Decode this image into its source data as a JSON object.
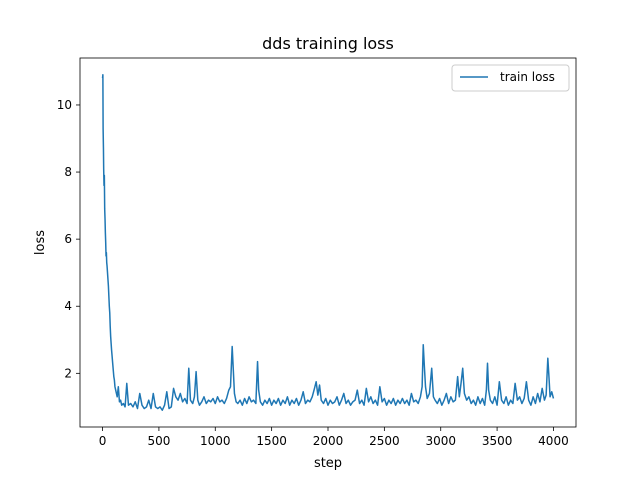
{
  "chart_data": {
    "type": "line",
    "title": "dds training loss",
    "xlabel": "step",
    "ylabel": "loss",
    "xlim": [
      -200,
      4200
    ],
    "ylim": [
      0.4,
      11.4
    ],
    "xticks": [
      0,
      500,
      1000,
      1500,
      2000,
      2500,
      3000,
      3500,
      4000
    ],
    "yticks": [
      2,
      4,
      6,
      8,
      10
    ],
    "grid": false,
    "legend_position": "top-right",
    "series": [
      {
        "name": "train loss",
        "color": "#1f77b4",
        "points": [
          [
            0,
            10.8
          ],
          [
            3,
            10.9
          ],
          [
            5,
            9.3
          ],
          [
            8,
            8.7
          ],
          [
            10,
            8.1
          ],
          [
            13,
            7.6
          ],
          [
            16,
            7.9
          ],
          [
            19,
            6.9
          ],
          [
            22,
            6.6
          ],
          [
            25,
            6.2
          ],
          [
            28,
            5.9
          ],
          [
            31,
            5.5
          ],
          [
            34,
            5.6
          ],
          [
            37,
            5.3
          ],
          [
            40,
            5.2
          ],
          [
            44,
            5.0
          ],
          [
            48,
            4.8
          ],
          [
            52,
            4.6
          ],
          [
            56,
            4.3
          ],
          [
            60,
            4.0
          ],
          [
            64,
            3.8
          ],
          [
            68,
            3.4
          ],
          [
            72,
            3.1
          ],
          [
            76,
            2.9
          ],
          [
            80,
            2.7
          ],
          [
            85,
            2.5
          ],
          [
            90,
            2.3
          ],
          [
            95,
            2.1
          ],
          [
            100,
            1.9
          ],
          [
            105,
            1.8
          ],
          [
            110,
            1.6
          ],
          [
            120,
            1.45
          ],
          [
            130,
            1.3
          ],
          [
            140,
            1.6
          ],
          [
            150,
            1.15
          ],
          [
            160,
            1.2
          ],
          [
            170,
            1.05
          ],
          [
            185,
            1.1
          ],
          [
            200,
            1.0
          ],
          [
            215,
            1.7
          ],
          [
            230,
            1.05
          ],
          [
            250,
            1.1
          ],
          [
            270,
            1.0
          ],
          [
            290,
            1.15
          ],
          [
            310,
            0.95
          ],
          [
            330,
            1.4
          ],
          [
            350,
            1.05
          ],
          [
            370,
            0.95
          ],
          [
            390,
            1.0
          ],
          [
            410,
            1.2
          ],
          [
            430,
            0.95
          ],
          [
            450,
            1.4
          ],
          [
            470,
            1.0
          ],
          [
            490,
            0.95
          ],
          [
            510,
            1.0
          ],
          [
            530,
            0.9
          ],
          [
            550,
            1.05
          ],
          [
            570,
            1.45
          ],
          [
            590,
            0.95
          ],
          [
            610,
            1.0
          ],
          [
            630,
            1.55
          ],
          [
            650,
            1.3
          ],
          [
            670,
            1.2
          ],
          [
            690,
            1.4
          ],
          [
            710,
            1.15
          ],
          [
            730,
            1.25
          ],
          [
            750,
            1.1
          ],
          [
            765,
            2.15
          ],
          [
            780,
            1.2
          ],
          [
            800,
            1.1
          ],
          [
            815,
            1.3
          ],
          [
            830,
            2.05
          ],
          [
            845,
            1.2
          ],
          [
            860,
            1.05
          ],
          [
            880,
            1.15
          ],
          [
            900,
            1.3
          ],
          [
            920,
            1.1
          ],
          [
            940,
            1.2
          ],
          [
            960,
            1.15
          ],
          [
            980,
            1.25
          ],
          [
            1000,
            1.1
          ],
          [
            1020,
            1.3
          ],
          [
            1040,
            1.15
          ],
          [
            1060,
            1.2
          ],
          [
            1080,
            1.1
          ],
          [
            1100,
            1.25
          ],
          [
            1120,
            1.5
          ],
          [
            1135,
            1.6
          ],
          [
            1150,
            2.8
          ],
          [
            1160,
            2.1
          ],
          [
            1170,
            1.4
          ],
          [
            1185,
            1.15
          ],
          [
            1200,
            1.1
          ],
          [
            1220,
            1.2
          ],
          [
            1240,
            1.05
          ],
          [
            1260,
            1.25
          ],
          [
            1280,
            1.1
          ],
          [
            1300,
            1.3
          ],
          [
            1320,
            1.15
          ],
          [
            1340,
            1.2
          ],
          [
            1360,
            1.1
          ],
          [
            1375,
            2.35
          ],
          [
            1385,
            1.5
          ],
          [
            1400,
            1.15
          ],
          [
            1420,
            1.05
          ],
          [
            1440,
            1.2
          ],
          [
            1460,
            1.1
          ],
          [
            1480,
            1.25
          ],
          [
            1500,
            1.05
          ],
          [
            1520,
            1.2
          ],
          [
            1540,
            1.1
          ],
          [
            1560,
            1.25
          ],
          [
            1580,
            1.05
          ],
          [
            1600,
            1.2
          ],
          [
            1620,
            1.1
          ],
          [
            1640,
            1.3
          ],
          [
            1660,
            1.05
          ],
          [
            1680,
            1.2
          ],
          [
            1700,
            1.1
          ],
          [
            1720,
            1.25
          ],
          [
            1740,
            1.05
          ],
          [
            1760,
            1.2
          ],
          [
            1780,
            1.45
          ],
          [
            1800,
            1.1
          ],
          [
            1820,
            1.2
          ],
          [
            1840,
            1.15
          ],
          [
            1860,
            1.3
          ],
          [
            1880,
            1.55
          ],
          [
            1895,
            1.75
          ],
          [
            1910,
            1.35
          ],
          [
            1925,
            1.65
          ],
          [
            1940,
            1.2
          ],
          [
            1960,
            1.1
          ],
          [
            1980,
            1.25
          ],
          [
            2000,
            1.05
          ],
          [
            2020,
            1.2
          ],
          [
            2040,
            1.1
          ],
          [
            2060,
            1.15
          ],
          [
            2080,
            1.3
          ],
          [
            2100,
            1.05
          ],
          [
            2120,
            1.2
          ],
          [
            2140,
            1.4
          ],
          [
            2160,
            1.1
          ],
          [
            2180,
            1.2
          ],
          [
            2200,
            1.05
          ],
          [
            2220,
            1.15
          ],
          [
            2240,
            1.2
          ],
          [
            2260,
            1.5
          ],
          [
            2280,
            1.1
          ],
          [
            2300,
            1.2
          ],
          [
            2320,
            1.05
          ],
          [
            2340,
            1.55
          ],
          [
            2360,
            1.15
          ],
          [
            2380,
            1.3
          ],
          [
            2400,
            1.1
          ],
          [
            2420,
            1.2
          ],
          [
            2440,
            1.05
          ],
          [
            2460,
            1.6
          ],
          [
            2480,
            1.15
          ],
          [
            2500,
            1.25
          ],
          [
            2520,
            1.05
          ],
          [
            2540,
            1.2
          ],
          [
            2560,
            1.1
          ],
          [
            2580,
            1.25
          ],
          [
            2600,
            1.05
          ],
          [
            2620,
            1.2
          ],
          [
            2640,
            1.1
          ],
          [
            2660,
            1.25
          ],
          [
            2680,
            1.1
          ],
          [
            2700,
            1.2
          ],
          [
            2720,
            1.05
          ],
          [
            2740,
            1.4
          ],
          [
            2760,
            1.15
          ],
          [
            2780,
            1.2
          ],
          [
            2800,
            1.1
          ],
          [
            2820,
            1.3
          ],
          [
            2835,
            1.6
          ],
          [
            2845,
            2.85
          ],
          [
            2855,
            2.2
          ],
          [
            2865,
            1.6
          ],
          [
            2880,
            1.25
          ],
          [
            2900,
            1.4
          ],
          [
            2920,
            2.15
          ],
          [
            2935,
            1.3
          ],
          [
            2950,
            1.2
          ],
          [
            2970,
            1.1
          ],
          [
            2990,
            1.25
          ],
          [
            3010,
            1.05
          ],
          [
            3030,
            1.2
          ],
          [
            3050,
            1.4
          ],
          [
            3070,
            1.1
          ],
          [
            3090,
            1.3
          ],
          [
            3110,
            1.15
          ],
          [
            3130,
            1.2
          ],
          [
            3150,
            1.9
          ],
          [
            3165,
            1.3
          ],
          [
            3180,
            1.7
          ],
          [
            3195,
            2.15
          ],
          [
            3210,
            1.4
          ],
          [
            3230,
            1.2
          ],
          [
            3250,
            1.3
          ],
          [
            3270,
            1.1
          ],
          [
            3290,
            1.2
          ],
          [
            3310,
            1.05
          ],
          [
            3330,
            1.3
          ],
          [
            3350,
            1.1
          ],
          [
            3370,
            1.25
          ],
          [
            3390,
            1.05
          ],
          [
            3405,
            1.5
          ],
          [
            3415,
            2.3
          ],
          [
            3425,
            1.5
          ],
          [
            3440,
            1.2
          ],
          [
            3460,
            1.1
          ],
          [
            3480,
            1.3
          ],
          [
            3500,
            1.05
          ],
          [
            3520,
            1.75
          ],
          [
            3540,
            1.2
          ],
          [
            3560,
            1.1
          ],
          [
            3580,
            1.3
          ],
          [
            3600,
            1.05
          ],
          [
            3620,
            1.2
          ],
          [
            3640,
            1.1
          ],
          [
            3660,
            1.7
          ],
          [
            3680,
            1.2
          ],
          [
            3700,
            1.3
          ],
          [
            3720,
            1.1
          ],
          [
            3740,
            1.25
          ],
          [
            3760,
            1.75
          ],
          [
            3780,
            1.2
          ],
          [
            3800,
            1.05
          ],
          [
            3820,
            1.3
          ],
          [
            3840,
            1.1
          ],
          [
            3860,
            1.4
          ],
          [
            3880,
            1.15
          ],
          [
            3900,
            1.55
          ],
          [
            3920,
            1.2
          ],
          [
            3935,
            1.35
          ],
          [
            3950,
            2.45
          ],
          [
            3960,
            1.9
          ],
          [
            3970,
            1.3
          ],
          [
            3985,
            1.45
          ],
          [
            4000,
            1.25
          ]
        ]
      }
    ]
  }
}
